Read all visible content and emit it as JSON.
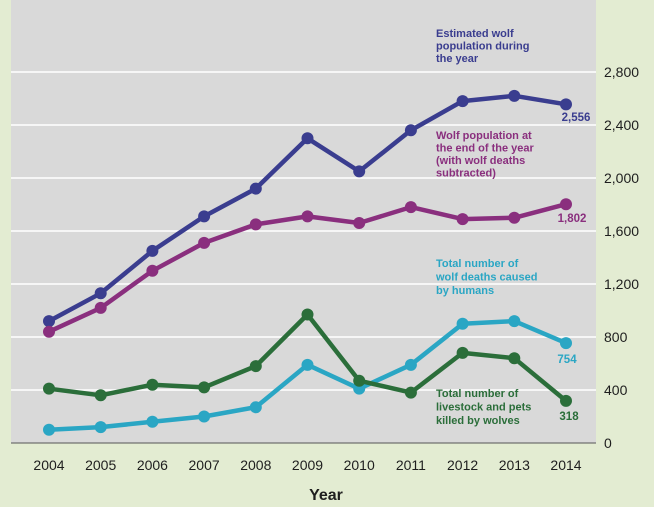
{
  "chart_data": {
    "type": "line",
    "title": "",
    "xlabel": "Year",
    "ylabel": "",
    "x": [
      2004,
      2005,
      2006,
      2007,
      2008,
      2009,
      2010,
      2011,
      2012,
      2013,
      2014
    ],
    "ylim": [
      0,
      3000
    ],
    "yticks": [
      0,
      400,
      800,
      1200,
      1600,
      2000,
      2400,
      2800
    ],
    "ytick_labels": [
      "0",
      "400",
      "800",
      "1,200",
      "1,600",
      "2,000",
      "2,400",
      "2,800"
    ],
    "grid": true,
    "series": [
      {
        "name": "Estimated wolf population during the year",
        "label_lines": [
          "Estimated wolf",
          "population during",
          "the year"
        ],
        "color": "#3a3d8f",
        "values": [
          920,
          1130,
          1450,
          1710,
          1920,
          2300,
          2050,
          2360,
          2580,
          2620,
          2556
        ],
        "end_label": "2,556"
      },
      {
        "name": "Wolf population at the end of the year (with wolf deaths subtracted)",
        "label_lines": [
          "Wolf population at",
          "the end of the year",
          "(with wolf deaths",
          "subtracted)"
        ],
        "color": "#8a2f7e",
        "values": [
          840,
          1020,
          1300,
          1510,
          1650,
          1710,
          1660,
          1780,
          1690,
          1700,
          1802
        ],
        "end_label": "1,802"
      },
      {
        "name": "Total number of wolf deaths caused by humans",
        "label_lines": [
          "Total number of",
          "wolf deaths caused",
          "by humans"
        ],
        "color": "#2aa6c4",
        "values": [
          100,
          120,
          160,
          200,
          270,
          590,
          410,
          590,
          900,
          920,
          754
        ],
        "end_label": "754"
      },
      {
        "name": "Total number of livestock and pets killed by wolves",
        "label_lines": [
          "Total number of",
          "livestock and pets",
          "killed by wolves"
        ],
        "color": "#2b6e3a",
        "values": [
          410,
          360,
          440,
          420,
          580,
          970,
          470,
          380,
          680,
          640,
          318
        ],
        "end_label": "318"
      }
    ]
  }
}
